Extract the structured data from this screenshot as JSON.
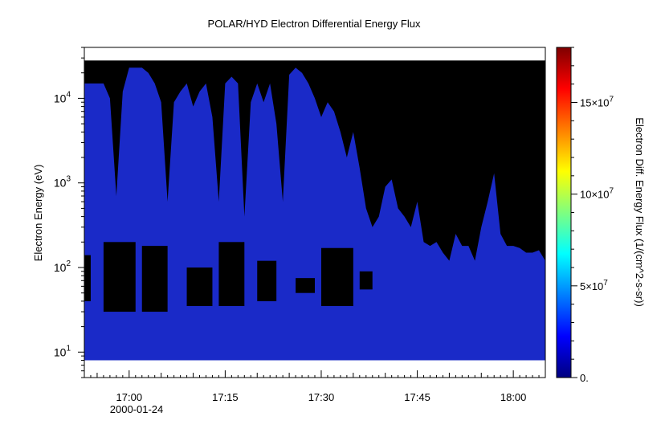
{
  "chart_data": {
    "type": "heatmap",
    "title": "POLAR/HYD  Electron Differential Energy Flux",
    "ylabel": "Electron Energy (eV)",
    "y_scale": "log",
    "ylim": [
      5,
      40000
    ],
    "y_ticks": [
      {
        "value": 10,
        "base": "10",
        "exp": "1"
      },
      {
        "value": 100,
        "base": "10",
        "exp": "2"
      },
      {
        "value": 1000,
        "base": "10",
        "exp": "3"
      },
      {
        "value": 10000,
        "base": "10",
        "exp": "4"
      }
    ],
    "x_range": [
      "2000-01-24T16:53",
      "2000-01-24T18:05"
    ],
    "x_ticks": [
      "17:00",
      "17:15",
      "17:30",
      "17:45",
      "18:00"
    ],
    "x_date_label": "2000-01-24",
    "colorbar": {
      "label": "Electron Diff. Energy Flux (1/(cm^2-s-sr))",
      "range": [
        0,
        180000000
      ],
      "ticks": [
        {
          "value": 0,
          "label": "0."
        },
        {
          "value": 50000000,
          "label": "5×10",
          "exp": "7"
        },
        {
          "value": 100000000,
          "label": "10×10",
          "exp": "7"
        },
        {
          "value": 150000000,
          "label": "15×10",
          "exp": "7"
        }
      ],
      "colormap": [
        "#00007f",
        "#0000ff",
        "#007fff",
        "#00ffff",
        "#7fff7f",
        "#ffff00",
        "#ff7f00",
        "#ff0000",
        "#7f0000"
      ]
    },
    "energy_range_eV": [
      8,
      28000
    ],
    "background_color": "#000000",
    "flux_color": "#1a2ac8",
    "upper_envelope": {
      "time": [
        "16:53",
        "16:56",
        "16:57",
        "16:58",
        "16:59",
        "17:00",
        "17:02",
        "17:03",
        "17:04",
        "17:05",
        "17:06",
        "17:07",
        "17:08",
        "17:09",
        "17:10",
        "17:11",
        "17:12",
        "17:13",
        "17:14",
        "17:15",
        "17:16",
        "17:17",
        "17:18",
        "17:19",
        "17:20",
        "17:21",
        "17:22",
        "17:23",
        "17:24",
        "17:25",
        "17:26",
        "17:27",
        "17:28",
        "17:29",
        "17:30",
        "17:31",
        "17:32",
        "17:33",
        "17:34",
        "17:35",
        "17:36",
        "17:37",
        "17:38",
        "17:39",
        "17:40",
        "17:41",
        "17:42",
        "17:43",
        "17:44",
        "17:45",
        "17:46",
        "17:47",
        "17:48",
        "17:49",
        "17:50",
        "17:51",
        "17:52",
        "17:53",
        "17:54",
        "17:55",
        "17:56",
        "17:57",
        "17:58",
        "17:59",
        "18:00",
        "18:01",
        "18:02",
        "18:03",
        "18:04",
        "18:05"
      ],
      "energy_eV": [
        15000,
        15000,
        10000,
        700,
        12000,
        23000,
        23000,
        20000,
        15000,
        9000,
        600,
        9000,
        12000,
        15000,
        8000,
        12000,
        15000,
        6000,
        600,
        15000,
        18000,
        15000,
        400,
        9000,
        15000,
        9000,
        15000,
        5000,
        600,
        19000,
        23000,
        20000,
        15000,
        10000,
        6000,
        9000,
        7000,
        4000,
        2000,
        4000,
        1500,
        500,
        300,
        400,
        900,
        1100,
        500,
        400,
        300,
        600,
        200,
        180,
        200,
        150,
        120,
        250,
        180,
        180,
        120,
        300,
        600,
        1300,
        250,
        180,
        180,
        170,
        150,
        150,
        160,
        120
      ]
    },
    "low_flux_gaps": [
      {
        "start": "16:53",
        "end": "16:54",
        "emin_eV": 40,
        "emax_eV": 140
      },
      {
        "start": "16:56",
        "end": "17:01",
        "emin_eV": 30,
        "emax_eV": 200
      },
      {
        "start": "17:02",
        "end": "17:06",
        "emin_eV": 30,
        "emax_eV": 180
      },
      {
        "start": "17:09",
        "end": "17:13",
        "emin_eV": 35,
        "emax_eV": 100
      },
      {
        "start": "17:14",
        "end": "17:18",
        "emin_eV": 35,
        "emax_eV": 200
      },
      {
        "start": "17:20",
        "end": "17:23",
        "emin_eV": 40,
        "emax_eV": 120
      },
      {
        "start": "17:26",
        "end": "17:29",
        "emin_eV": 50,
        "emax_eV": 75
      },
      {
        "start": "17:30",
        "end": "17:35",
        "emin_eV": 35,
        "emax_eV": 170
      },
      {
        "start": "17:36",
        "end": "17:38",
        "emin_eV": 55,
        "emax_eV": 90
      }
    ]
  }
}
